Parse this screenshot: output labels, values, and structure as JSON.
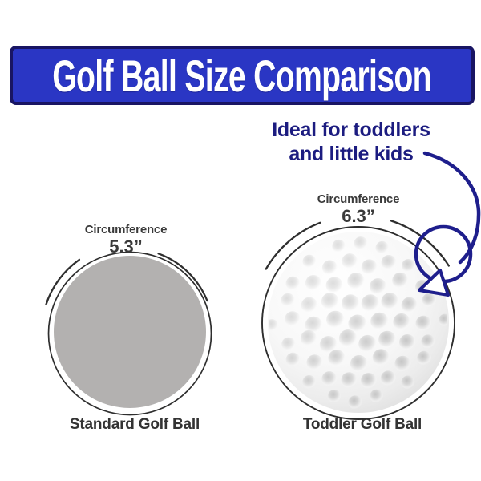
{
  "title_banner": {
    "title": "Golf Ball Size Comparison"
  },
  "callout": {
    "line1": "Ideal for toddlers",
    "line2": "and little kids"
  },
  "standard_ball": {
    "measure_label": "Circumference",
    "measure_value": "5.3”",
    "caption": "Standard Golf Ball"
  },
  "toddler_ball": {
    "measure_label": "Circumference",
    "measure_value": "6.3”",
    "caption": "Toddler Golf Ball"
  },
  "colors": {
    "banner_bg": "#2a36c4",
    "banner_border": "#191563",
    "banner_text": "#ffffff",
    "callout_text": "#1c1c80",
    "arrow": "#1e1e8c",
    "measure_text": "#3a3a3a",
    "caption_text": "#333333",
    "standard_ball_fill": "#b3b1b0",
    "outline": "#2e2e2e"
  }
}
